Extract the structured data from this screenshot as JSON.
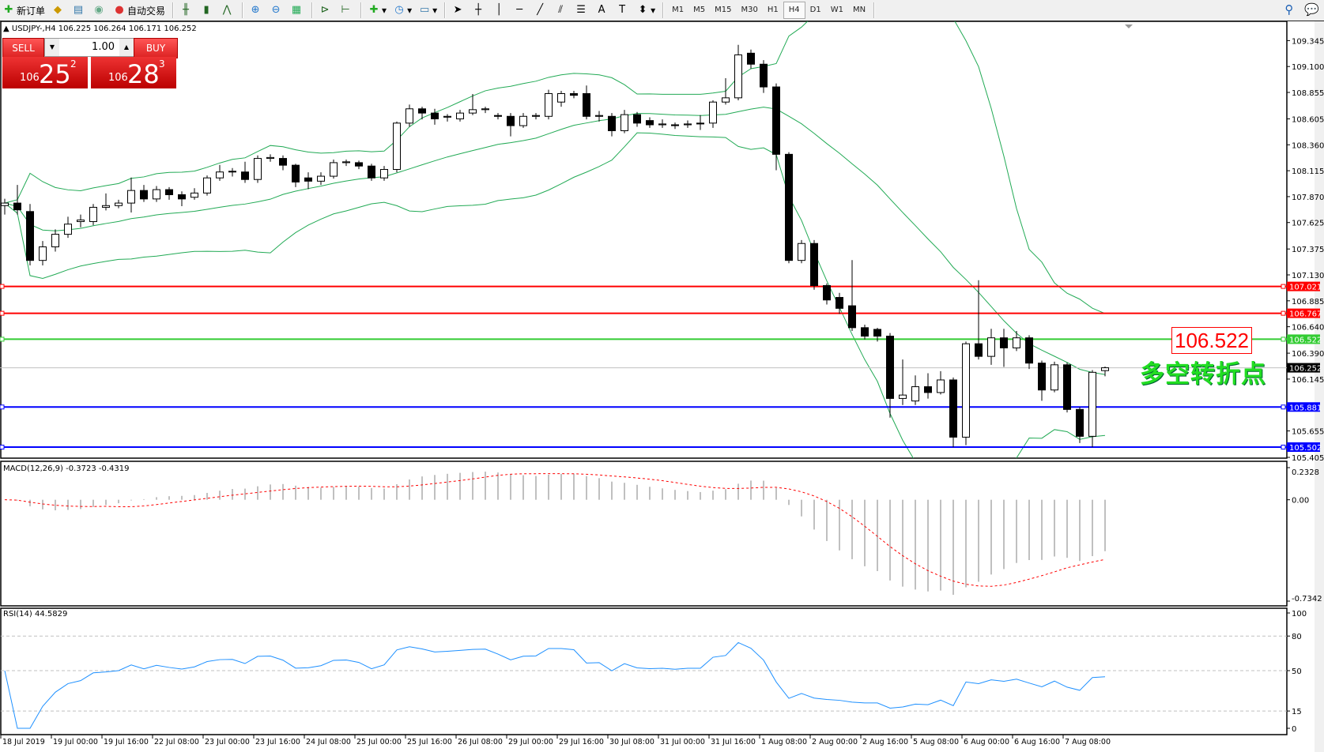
{
  "toolbar": {
    "new_order": "新订单",
    "auto_trading": "自动交易",
    "timeframes": [
      "M1",
      "M5",
      "M15",
      "M30",
      "H1",
      "H4",
      "D1",
      "W1",
      "MN"
    ],
    "active_timeframe": "H4"
  },
  "header": {
    "symbol_line": "USDJPY-,H4  106.225 106.264 106.171 106.252"
  },
  "trade_panel": {
    "sell_label": "SELL",
    "buy_label": "BUY",
    "lot": "1.00",
    "sell_prefix": "106",
    "sell_big": "25",
    "sell_sup": "2",
    "buy_prefix": "106",
    "buy_big": "28",
    "buy_sup": "3"
  },
  "annotation": {
    "price_box": "106.522",
    "text": "多空转折点",
    "text_color": "#22dd22"
  },
  "macd": {
    "label": "MACD(12,26,9) -0.3723 -0.4319",
    "ticks": [
      "0.2328",
      "0.00",
      "-0.7342"
    ],
    "range": [
      -0.7342,
      0.2328
    ]
  },
  "rsi": {
    "label": "RSI(14) 44.5829",
    "ticks": [
      "100",
      "80",
      "50",
      "15",
      "0"
    ],
    "levels": [
      80,
      50,
      15
    ]
  },
  "chart_data": {
    "type": "candlestick",
    "symbol": "USDJPY-",
    "timeframe": "H4",
    "price_ticks": [
      "109.345",
      "109.100",
      "108.855",
      "108.605",
      "108.360",
      "108.115",
      "107.870",
      "107.625",
      "107.375",
      "107.130",
      "106.885",
      "106.640",
      "106.390",
      "106.145",
      "105.655",
      "105.405"
    ],
    "ylim": [
      105.405,
      109.345
    ],
    "time_labels": [
      "18 Jul 2019",
      "19 Jul 00:00",
      "19 Jul 16:00",
      "22 Jul 08:00",
      "23 Jul 00:00",
      "23 Jul 16:00",
      "24 Jul 08:00",
      "25 Jul 00:00",
      "25 Jul 16:00",
      "26 Jul 08:00",
      "29 Jul 00:00",
      "29 Jul 16:00",
      "30 Jul 08:00",
      "31 Jul 00:00",
      "31 Jul 16:00",
      "1 Aug 08:00",
      "2 Aug 00:00",
      "2 Aug 16:00",
      "5 Aug 08:00",
      "6 Aug 00:00",
      "6 Aug 16:00",
      "7 Aug 08:00"
    ],
    "current_price": "106.252",
    "hlines": [
      {
        "price": 107.021,
        "label": "107.021",
        "color": "#ff0000"
      },
      {
        "price": 106.767,
        "label": "106.767",
        "color": "#ff0000"
      },
      {
        "price": 106.522,
        "label": "106.522",
        "color": "#33cc33"
      },
      {
        "price": 105.881,
        "label": "105.881",
        "color": "#0000ff"
      },
      {
        "price": 105.502,
        "label": "105.502",
        "color": "#0000ff"
      }
    ],
    "colors": {
      "bands": "#22aa55",
      "rsi": "#1e90ff",
      "macd_hist": "#c0c0c0",
      "macd_signal": "#ff0000"
    },
    "ohlc": [
      [
        107.785,
        107.85,
        107.7,
        107.809
      ],
      [
        107.809,
        107.98,
        107.7,
        107.745
      ],
      [
        107.729,
        107.8,
        107.22,
        107.267
      ],
      [
        107.267,
        107.45,
        107.22,
        107.395
      ],
      [
        107.395,
        107.56,
        107.35,
        107.514
      ],
      [
        107.514,
        107.68,
        107.48,
        107.61
      ],
      [
        107.634,
        107.7,
        107.58,
        107.649
      ],
      [
        107.634,
        107.8,
        107.6,
        107.769
      ],
      [
        107.769,
        107.9,
        107.74,
        107.785
      ],
      [
        107.785,
        107.84,
        107.76,
        107.809
      ],
      [
        107.809,
        108.05,
        107.72,
        107.928
      ],
      [
        107.928,
        107.98,
        107.82,
        107.848
      ],
      [
        107.848,
        107.97,
        107.82,
        107.936
      ],
      [
        107.936,
        107.96,
        107.84,
        107.888
      ],
      [
        107.888,
        107.92,
        107.78,
        107.848
      ],
      [
        107.864,
        107.95,
        107.84,
        107.904
      ],
      [
        107.904,
        108.07,
        107.88,
        108.047
      ],
      [
        108.047,
        108.17,
        108.02,
        108.103
      ],
      [
        108.103,
        108.14,
        108.06,
        108.11
      ],
      [
        108.103,
        108.2,
        108.0,
        108.032
      ],
      [
        108.032,
        108.26,
        108.0,
        108.231
      ],
      [
        108.231,
        108.27,
        108.2,
        108.24
      ],
      [
        108.231,
        108.26,
        108.12,
        108.167
      ],
      [
        108.167,
        108.18,
        107.96,
        108.008
      ],
      [
        108.047,
        108.1,
        107.94,
        108.016
      ],
      [
        108.016,
        108.1,
        107.98,
        108.063
      ],
      [
        108.063,
        108.22,
        108.04,
        108.191
      ],
      [
        108.191,
        108.22,
        108.16,
        108.199
      ],
      [
        108.191,
        108.21,
        108.13,
        108.159
      ],
      [
        108.159,
        108.18,
        108.02,
        108.047
      ],
      [
        108.047,
        108.16,
        108.02,
        108.127
      ],
      [
        108.127,
        108.58,
        108.1,
        108.565
      ],
      [
        108.565,
        108.74,
        108.53,
        108.7
      ],
      [
        108.7,
        108.72,
        108.6,
        108.66
      ],
      [
        108.66,
        108.7,
        108.55,
        108.605
      ],
      [
        108.621,
        108.65,
        108.58,
        108.629
      ],
      [
        108.605,
        108.69,
        108.58,
        108.66
      ],
      [
        108.66,
        108.84,
        108.64,
        108.692
      ],
      [
        108.692,
        108.72,
        108.66,
        108.7
      ],
      [
        108.637,
        108.66,
        108.6,
        108.629
      ],
      [
        108.629,
        108.66,
        108.44,
        108.541
      ],
      [
        108.541,
        108.66,
        108.52,
        108.629
      ],
      [
        108.629,
        108.66,
        108.6,
        108.637
      ],
      [
        108.629,
        108.88,
        108.6,
        108.844
      ],
      [
        108.764,
        108.87,
        108.72,
        108.844
      ],
      [
        108.844,
        108.87,
        108.8,
        108.828
      ],
      [
        108.844,
        108.92,
        108.6,
        108.629
      ],
      [
        108.629,
        108.68,
        108.58,
        108.637
      ],
      [
        108.629,
        108.66,
        108.44,
        108.493
      ],
      [
        108.493,
        108.69,
        108.47,
        108.645
      ],
      [
        108.645,
        108.67,
        108.53,
        108.565
      ],
      [
        108.589,
        108.62,
        108.52,
        108.549
      ],
      [
        108.549,
        108.6,
        108.52,
        108.557
      ],
      [
        108.549,
        108.57,
        108.51,
        108.541
      ],
      [
        108.549,
        108.59,
        108.52,
        108.557
      ],
      [
        108.565,
        108.64,
        108.5,
        108.557
      ],
      [
        108.565,
        108.78,
        108.52,
        108.764
      ],
      [
        108.764,
        108.99,
        108.74,
        108.804
      ],
      [
        108.804,
        109.305,
        108.78,
        109.21
      ],
      [
        109.226,
        109.26,
        109.08,
        109.122
      ],
      [
        109.122,
        109.16,
        108.85,
        108.907
      ],
      [
        108.907,
        108.94,
        108.12,
        108.27
      ],
      [
        108.27,
        108.29,
        107.24,
        107.267
      ],
      [
        107.267,
        107.46,
        107.24,
        107.427
      ],
      [
        107.427,
        107.46,
        106.99,
        107.029
      ],
      [
        107.029,
        107.05,
        106.85,
        106.893
      ],
      [
        106.917,
        106.96,
        106.76,
        106.814
      ],
      [
        106.838,
        107.27,
        106.6,
        106.631
      ],
      [
        106.631,
        106.66,
        106.52,
        106.551
      ],
      [
        106.615,
        106.63,
        106.5,
        106.551
      ],
      [
        106.551,
        106.58,
        105.78,
        105.962
      ],
      [
        105.962,
        106.33,
        105.9,
        105.994
      ],
      [
        105.938,
        106.18,
        105.9,
        106.073
      ],
      [
        106.073,
        106.2,
        105.96,
        106.018
      ],
      [
        106.018,
        106.22,
        106.0,
        106.137
      ],
      [
        106.137,
        106.16,
        105.5,
        105.596
      ],
      [
        105.596,
        106.5,
        105.52,
        106.479
      ],
      [
        106.479,
        107.08,
        106.33,
        106.36
      ],
      [
        106.36,
        106.62,
        106.28,
        106.535
      ],
      [
        106.535,
        106.62,
        106.26,
        106.44
      ],
      [
        106.44,
        106.6,
        106.41,
        106.535
      ],
      [
        106.535,
        106.56,
        106.24,
        106.296
      ],
      [
        106.296,
        106.32,
        105.94,
        106.042
      ],
      [
        106.042,
        106.31,
        106.02,
        106.28
      ],
      [
        106.28,
        106.3,
        105.83,
        105.858
      ],
      [
        105.858,
        105.88,
        105.54,
        105.604
      ],
      [
        105.604,
        106.23,
        105.5,
        106.209
      ],
      [
        106.225,
        106.264,
        106.171,
        106.252
      ]
    ]
  }
}
